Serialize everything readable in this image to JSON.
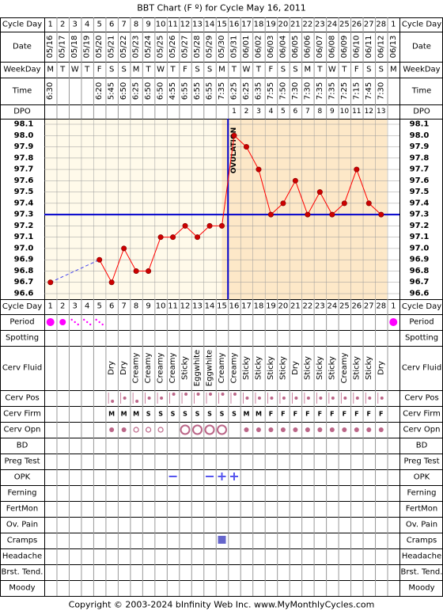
{
  "title": "BBT Chart (F º) for Cycle May 16, 2011",
  "footer": "Copyright © 2003-2024 bInfinity Web Inc.     www.MyMonthlyCycles.com",
  "row_labels": {
    "cycle_day": "Cycle Day",
    "date": "Date",
    "weekday": "WeekDay",
    "time": "Time",
    "dpo": "DPO",
    "period": "Period",
    "spotting": "Spotting",
    "cerv_fluid": "Cerv Fluid",
    "cerv_pos": "Cerv Pos",
    "cerv_firm": "Cerv Firm",
    "cerv_opn": "Cerv Opn",
    "bd": "BD",
    "preg_test": "Preg Test",
    "opk": "OPK",
    "ferning": "Ferning",
    "fertmon": "FertMon",
    "ov_pain": "Ov. Pain",
    "cramps": "Cramps",
    "headache": "Headache",
    "brst_tend": "Brst. Tend.",
    "moody": "Moody"
  },
  "days": [
    "1",
    "2",
    "3",
    "4",
    "5",
    "6",
    "7",
    "8",
    "9",
    "10",
    "11",
    "12",
    "13",
    "14",
    "15",
    "16",
    "17",
    "18",
    "19",
    "20",
    "21",
    "22",
    "23",
    "24",
    "25",
    "26",
    "27",
    "28",
    "1"
  ],
  "dates": [
    "05/16",
    "05/17",
    "05/18",
    "05/19",
    "05/20",
    "05/21",
    "05/22",
    "05/23",
    "05/24",
    "05/25",
    "05/26",
    "05/27",
    "05/28",
    "05/29",
    "05/30",
    "05/31",
    "06/01",
    "06/02",
    "06/03",
    "06/04",
    "06/05",
    "06/06",
    "06/07",
    "06/08",
    "06/09",
    "06/10",
    "06/11",
    "06/12",
    "06/13"
  ],
  "weekdays": [
    "M",
    "T",
    "W",
    "T",
    "F",
    "S",
    "S",
    "M",
    "T",
    "W",
    "T",
    "F",
    "S",
    "S",
    "M",
    "T",
    "W",
    "T",
    "F",
    "S",
    "S",
    "M",
    "T",
    "W",
    "T",
    "F",
    "S",
    "S",
    "M"
  ],
  "times": [
    "6:30",
    "",
    "",
    "",
    "6:20",
    "5:45",
    "6:50",
    "6:25",
    "6:50",
    "6:50",
    "4:55",
    "6:55",
    "6:55",
    "6:55",
    "7:35",
    "6:25",
    "6:25",
    "6:35",
    "7:55",
    "7:50",
    "7:30",
    "7:30",
    "7:35",
    "7:35",
    "7:25",
    "7:15",
    "7:45",
    "7:30",
    ""
  ],
  "dpo": [
    "",
    "",
    "",
    "",
    "",
    "",
    "",
    "",
    "",
    "",
    "",
    "",
    "",
    "",
    "",
    "1",
    "2",
    "3",
    "4",
    "5",
    "6",
    "7",
    "8",
    "9",
    "10",
    "11",
    "12",
    "13",
    ""
  ],
  "temp_ticks": [
    "98.1",
    "98.0",
    "97.9",
    "97.8",
    "97.7",
    "97.6",
    "97.5",
    "97.4",
    "97.3",
    "97.2",
    "97.1",
    "97.0",
    "96.9",
    "96.8",
    "96.7",
    "96.6"
  ],
  "ovulation_label": "OVULATION",
  "cerv_fluid": [
    "",
    "",
    "",
    "",
    "",
    "Dry",
    "Dry",
    "Creamy",
    "Creamy",
    "Creamy",
    "Creamy",
    "Sticky",
    "Eggwhite",
    "Eggwhite",
    "Creamy",
    "Creamy",
    "Sticky",
    "Sticky",
    "Sticky",
    "Sticky",
    "Dry",
    "Sticky",
    "Sticky",
    "Sticky",
    "Creamy",
    "Sticky",
    "Sticky",
    "Dry",
    ""
  ],
  "cerv_firm": [
    "",
    "",
    "",
    "",
    "",
    "M",
    "M",
    "M",
    "S",
    "S",
    "S",
    "S",
    "S",
    "S",
    "S",
    "S",
    "M",
    "M",
    "F",
    "F",
    "F",
    "F",
    "F",
    "F",
    "F",
    "F",
    "F",
    "F",
    ""
  ],
  "cerv_pos": [
    "",
    "",
    "",
    "",
    "",
    "low",
    "mid",
    "low",
    "mid",
    "mid",
    "high",
    "high",
    "high",
    "high",
    "high",
    "high",
    "mid",
    "mid",
    "mid",
    "mid",
    "mid",
    "mid",
    "mid",
    "mid",
    "mid",
    "mid",
    "mid",
    "mid",
    ""
  ],
  "cerv_opn": [
    "",
    "",
    "",
    "",
    "",
    "small",
    "small",
    "medium",
    "medium",
    "medium",
    "",
    "large",
    "large",
    "large",
    "large",
    "",
    "small",
    "small",
    "small",
    "small",
    "small",
    "small",
    "small",
    "small",
    "small",
    "small",
    "small",
    "small",
    ""
  ],
  "period": [
    "heavy",
    "medium",
    "light",
    "light",
    "light",
    "",
    "",
    "",
    "",
    "",
    "",
    "",
    "",
    "",
    "",
    "",
    "",
    "",
    "",
    "",
    "",
    "",
    "",
    "",
    "",
    "",
    "",
    "",
    "heavy"
  ],
  "opk": [
    "",
    "",
    "",
    "",
    "",
    "",
    "",
    "",
    "",
    "",
    "negative",
    "",
    "",
    "negative",
    "positive",
    "positive",
    "",
    "",
    "",
    "",
    "",
    "",
    "",
    "",
    "",
    "",
    "",
    "",
    ""
  ],
  "cramps": [
    "",
    "",
    "",
    "",
    "",
    "",
    "",
    "",
    "",
    "",
    "",
    "",
    "",
    "",
    "yes",
    "",
    "",
    "",
    "",
    "",
    "",
    "",
    "",
    "",
    "",
    "",
    "",
    "",
    ""
  ],
  "colors": {
    "border": "#000000",
    "grid": "#999999",
    "pre_ov_fill": "#fffaea",
    "post_ov_fill": "#fde8c8",
    "coverline": "#0000cc",
    "ov_line": "#0000cc",
    "temp_line": "#ff0000",
    "temp_point": "#cc0000",
    "period_dot": "#ff00ff",
    "cerv_dot": "#bb6688",
    "cerv_text": "#bb3399",
    "opk": "#5555ee",
    "cramps": "#6666cc"
  },
  "chart_data": {
    "type": "line",
    "title": "BBT Chart (F º) for Cycle May 16, 2011",
    "xlabel": "Cycle Day",
    "ylabel": "",
    "x": [
      1,
      2,
      3,
      4,
      5,
      6,
      7,
      8,
      9,
      10,
      11,
      12,
      13,
      14,
      15,
      16,
      17,
      18,
      19,
      20,
      21,
      22,
      23,
      24,
      25,
      26,
      27,
      28,
      29
    ],
    "x_tick_labels": [
      "1",
      "2",
      "3",
      "4",
      "5",
      "6",
      "7",
      "8",
      "9",
      "10",
      "11",
      "12",
      "13",
      "14",
      "15",
      "16",
      "17",
      "18",
      "19",
      "20",
      "21",
      "22",
      "23",
      "24",
      "25",
      "26",
      "27",
      "28",
      "1"
    ],
    "ylim": [
      96.6,
      98.1
    ],
    "series": [
      {
        "values": [
          96.7,
          null,
          null,
          null,
          96.9,
          96.7,
          97.0,
          96.8,
          96.8,
          97.1,
          97.1,
          97.2,
          97.1,
          97.2,
          97.2,
          98.0,
          97.9,
          97.7,
          97.3,
          97.4,
          97.6,
          97.3,
          97.5,
          97.3,
          97.4,
          97.7,
          97.4,
          97.3,
          null
        ]
      }
    ],
    "coverline": 97.3,
    "ovulation_day": 15,
    "grid": true
  }
}
